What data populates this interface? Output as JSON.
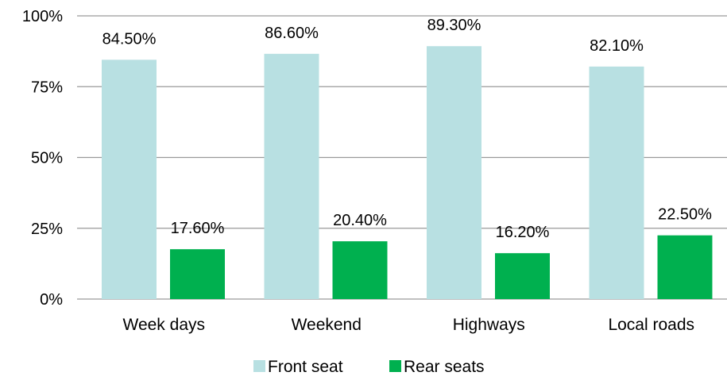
{
  "chart_data": {
    "type": "bar",
    "categories": [
      "Week days",
      "Weekend",
      "Highways",
      "Local roads"
    ],
    "series": [
      {
        "name": "Front seat",
        "values": [
          84.5,
          86.6,
          89.3,
          82.1
        ],
        "labels": [
          "84.50%",
          "86.60%",
          "89.30%",
          "82.10%"
        ],
        "color": "#b8e0e2"
      },
      {
        "name": "Rear seats",
        "values": [
          17.6,
          20.4,
          16.2,
          22.5
        ],
        "labels": [
          "17.60%",
          "20.40%",
          "16.20%",
          "22.50%"
        ],
        "color": "#00b04f"
      }
    ],
    "y_ticks": [
      "0%",
      "25%",
      "50%",
      "75%",
      "100%"
    ],
    "ylim": [
      0,
      100
    ],
    "grid": true,
    "legend": "bottom-center"
  }
}
